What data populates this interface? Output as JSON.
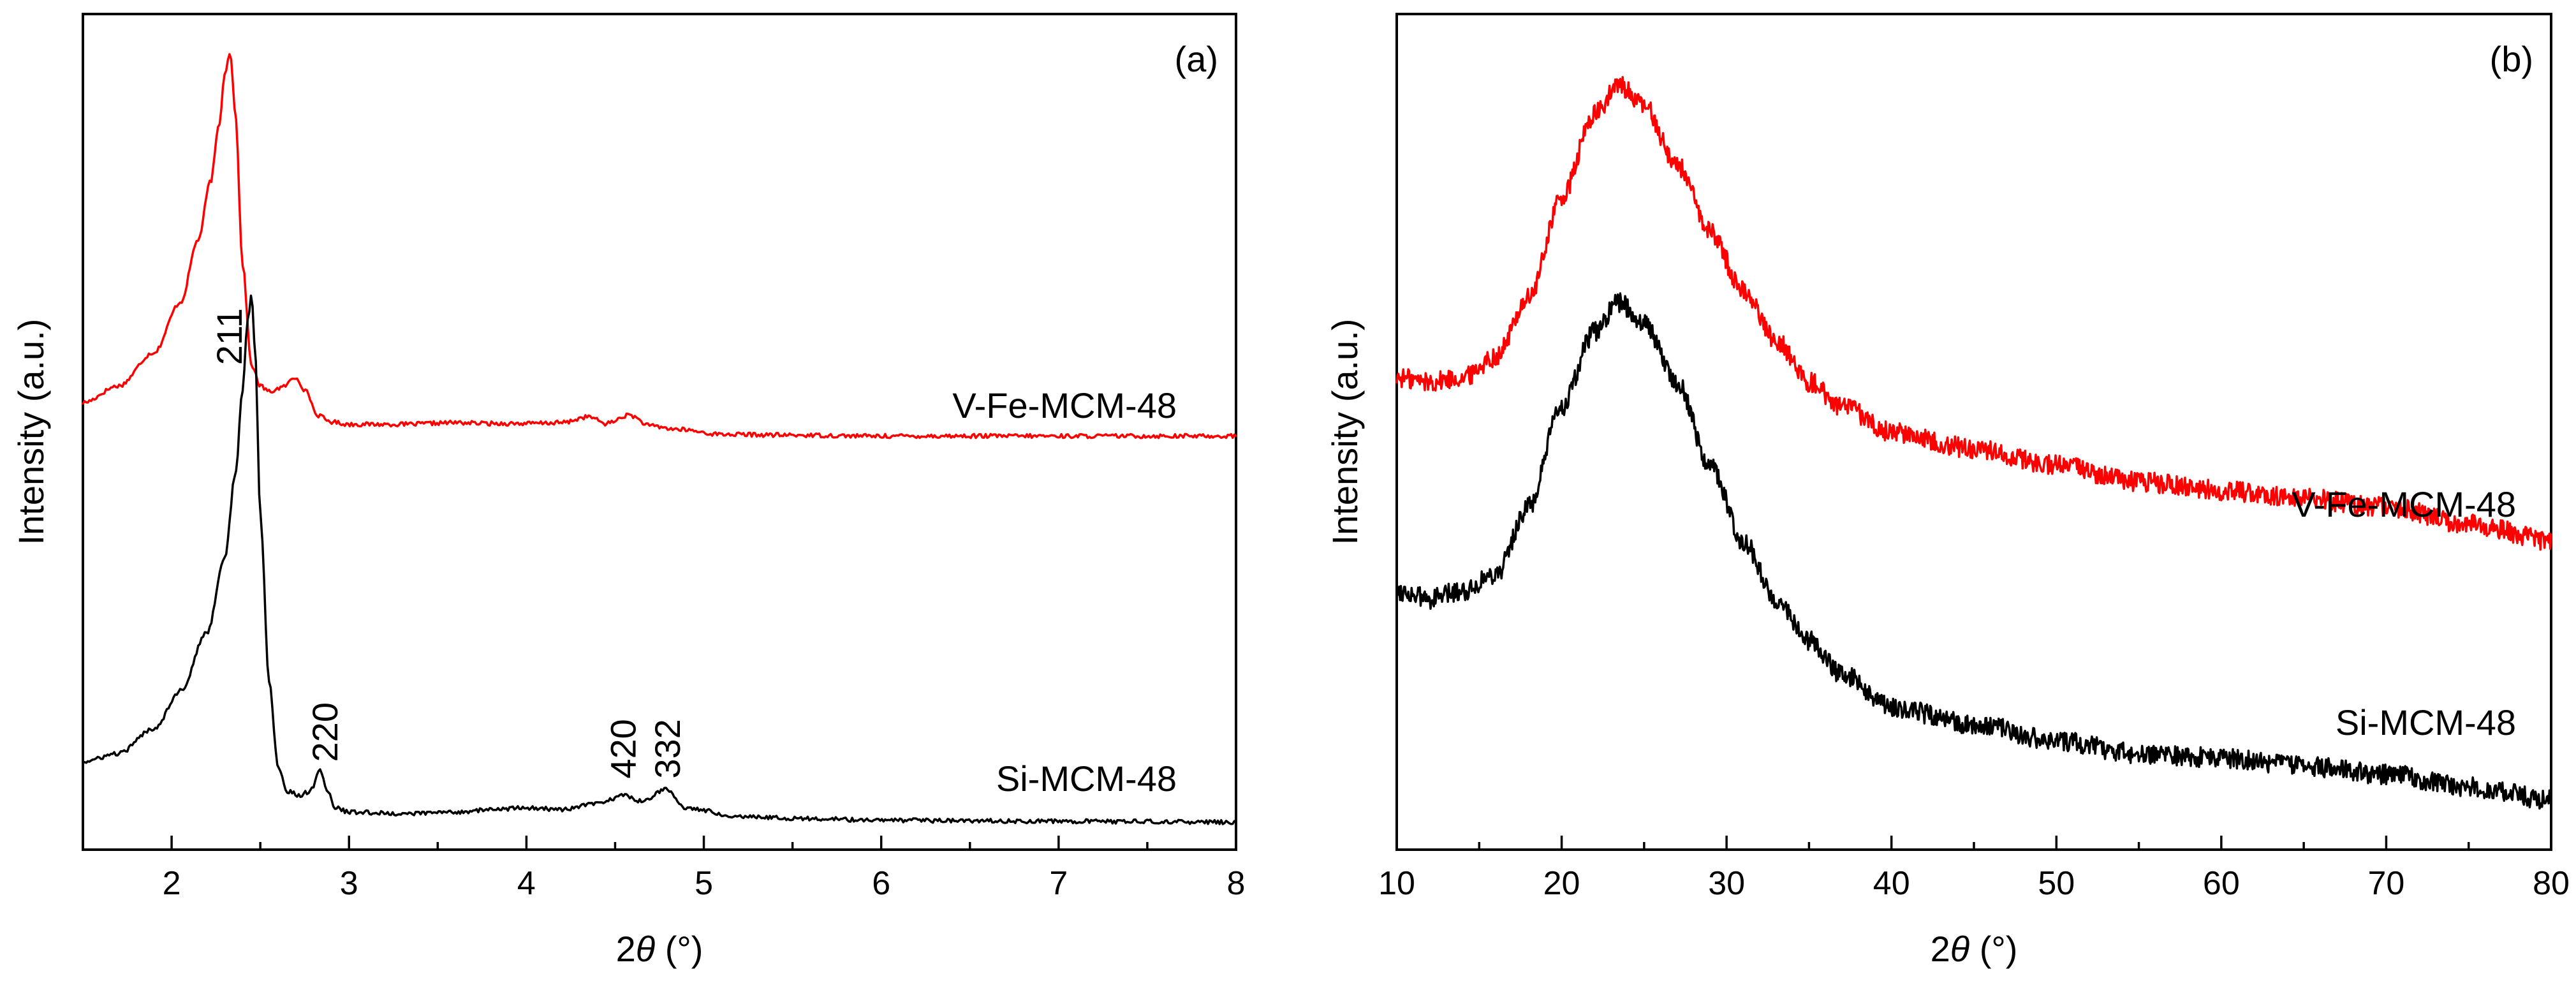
{
  "figure": {
    "x_axis_title_prefix": "2",
    "x_axis_title_symbol": "θ",
    "x_axis_title_unit": " (°)"
  },
  "chart_data": [
    {
      "panel_label": "(a)",
      "type": "line",
      "title": "",
      "xlabel": "2θ (°)",
      "ylabel": "Intensity (a.u.)",
      "xlim": [
        1.5,
        8
      ],
      "ylim": [
        0,
        1
      ],
      "y_ticks_shown": false,
      "x_ticks": [
        "2",
        "3",
        "4",
        "5",
        "6",
        "7",
        "8"
      ],
      "legend": "inline labels beside each trace (right side)",
      "series": [
        {
          "name": "V-Fe-MCM-48",
          "color": "#ff0000",
          "x": [
            1.5,
            1.7,
            1.9,
            2.05,
            2.15,
            2.22,
            2.27,
            2.3,
            2.33,
            2.36,
            2.4,
            2.45,
            2.5,
            2.55,
            2.62,
            2.7,
            2.76,
            2.82,
            2.9,
            3.0,
            3.3,
            3.6,
            3.8,
            4.0,
            4.2,
            4.35,
            4.45,
            4.58,
            4.7,
            4.85,
            5.1,
            5.5,
            6.0,
            7.0,
            8.0
          ],
          "y": [
            0.535,
            0.555,
            0.595,
            0.655,
            0.73,
            0.8,
            0.87,
            0.93,
            0.955,
            0.88,
            0.7,
            0.58,
            0.555,
            0.548,
            0.553,
            0.565,
            0.548,
            0.52,
            0.512,
            0.509,
            0.509,
            0.511,
            0.51,
            0.51,
            0.511,
            0.518,
            0.51,
            0.52,
            0.507,
            0.503,
            0.497,
            0.496,
            0.495,
            0.495,
            0.495
          ]
        },
        {
          "name": "Si-MCM-48",
          "color": "#000000",
          "x": [
            1.5,
            1.7,
            1.9,
            2.05,
            2.2,
            2.3,
            2.36,
            2.4,
            2.43,
            2.45,
            2.47,
            2.5,
            2.55,
            2.6,
            2.65,
            2.72,
            2.78,
            2.84,
            2.88,
            2.92,
            3.0,
            3.3,
            3.6,
            3.8,
            4.0,
            4.2,
            4.4,
            4.55,
            4.65,
            4.78,
            4.9,
            5.2,
            5.6,
            6.0,
            7.0,
            8.0
          ],
          "y": [
            0.105,
            0.115,
            0.145,
            0.19,
            0.26,
            0.35,
            0.45,
            0.55,
            0.635,
            0.665,
            0.6,
            0.4,
            0.2,
            0.1,
            0.07,
            0.065,
            0.07,
            0.095,
            0.07,
            0.05,
            0.045,
            0.043,
            0.045,
            0.048,
            0.05,
            0.048,
            0.055,
            0.065,
            0.058,
            0.072,
            0.05,
            0.04,
            0.037,
            0.035,
            0.034,
            0.033
          ]
        }
      ],
      "annotations": [
        {
          "text": "211",
          "x": 2.33,
          "y": 0.58
        },
        {
          "text": "220",
          "x": 2.87,
          "y": 0.105
        },
        {
          "text": "420",
          "x": 4.55,
          "y": 0.085
        },
        {
          "text": "332",
          "x": 4.8,
          "y": 0.085
        }
      ]
    },
    {
      "panel_label": "(b)",
      "type": "line",
      "title": "",
      "xlabel": "2θ (°)",
      "ylabel": "Intensity (a.u.)",
      "xlim": [
        10,
        80
      ],
      "ylim": [
        0,
        1
      ],
      "y_ticks_shown": false,
      "x_ticks": [
        "10",
        "20",
        "30",
        "40",
        "50",
        "60",
        "70",
        "80"
      ],
      "legend": "inline labels beside each trace (right side)",
      "series": [
        {
          "name": "V-Fe-MCM-48",
          "color": "#ff0000",
          "x": [
            10,
            12,
            14,
            16,
            18,
            20,
            22,
            23.5,
            25,
            27,
            29,
            31,
            33,
            35,
            37,
            40,
            45,
            50,
            55,
            60,
            65,
            70,
            75,
            80
          ],
          "y": [
            0.565,
            0.56,
            0.565,
            0.59,
            0.66,
            0.78,
            0.88,
            0.915,
            0.89,
            0.82,
            0.74,
            0.67,
            0.61,
            0.56,
            0.53,
            0.5,
            0.48,
            0.46,
            0.44,
            0.43,
            0.42,
            0.41,
            0.39,
            0.37
          ]
        },
        {
          "name": "Si-MCM-48",
          "color": "#000000",
          "x": [
            10,
            12,
            14,
            16,
            18,
            20,
            22,
            23.5,
            25,
            27,
            29,
            31,
            33,
            35,
            37,
            40,
            45,
            50,
            55,
            60,
            65,
            70,
            75,
            80
          ],
          "y": [
            0.31,
            0.3,
            0.31,
            0.33,
            0.41,
            0.53,
            0.62,
            0.655,
            0.63,
            0.56,
            0.46,
            0.37,
            0.3,
            0.25,
            0.21,
            0.17,
            0.15,
            0.13,
            0.115,
            0.11,
            0.1,
            0.09,
            0.075,
            0.06
          ]
        }
      ],
      "annotations": []
    }
  ]
}
